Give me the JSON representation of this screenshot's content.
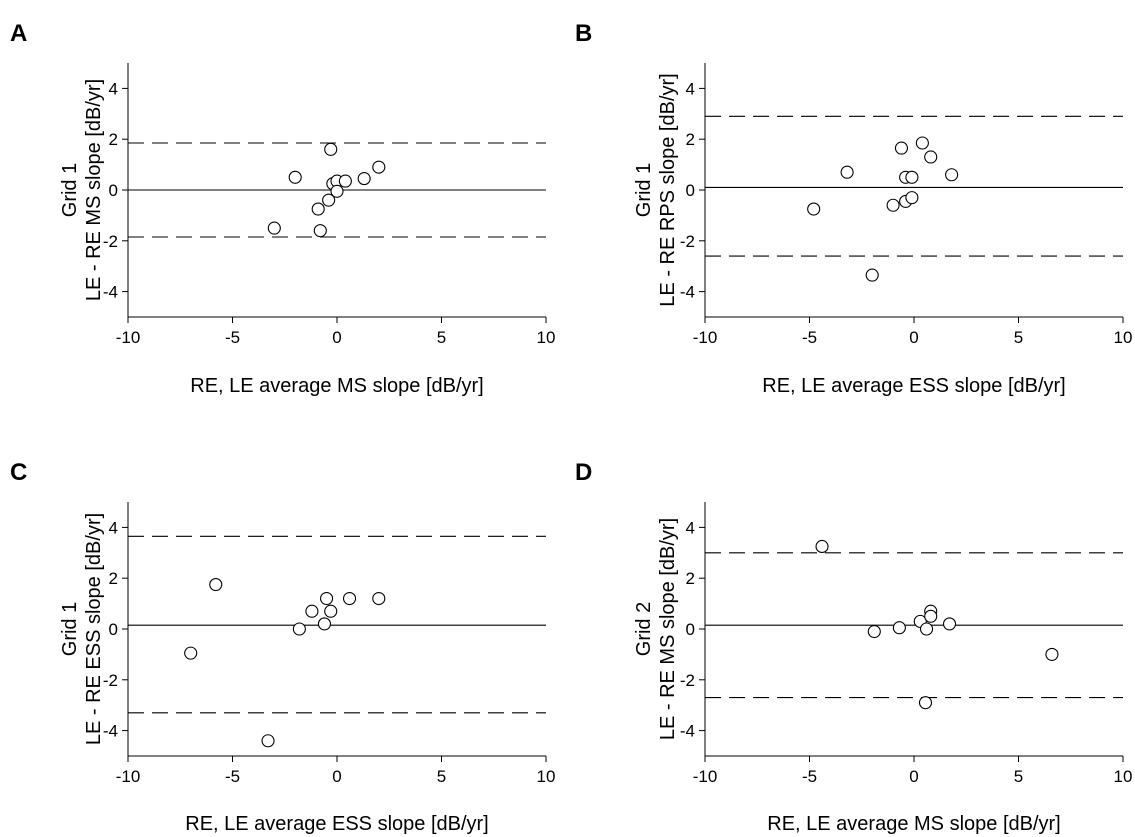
{
  "figure": {
    "panels": [
      {
        "letter": "A",
        "ylabel_line1": "Grid 1",
        "ylabel_line2": "LE - RE MS slope [dB/yr]",
        "xlabel": "RE, LE average MS slope [dB/yr]"
      },
      {
        "letter": "B",
        "ylabel_line1": "Grid 1",
        "ylabel_line2": "LE - RE RPS slope [dB/yr]",
        "xlabel": "RE, LE average ESS slope [dB/yr]"
      },
      {
        "letter": "C",
        "ylabel_line1": "Grid 1",
        "ylabel_line2": "LE - RE ESS slope [dB/yr]",
        "xlabel": "RE, LE average ESS slope [dB/yr]"
      },
      {
        "letter": "D",
        "ylabel_line1": "Grid 2",
        "ylabel_line2": "LE - RE MS slope [dB/yr]",
        "xlabel": "RE, LE average MS slope [dB/yr]"
      }
    ]
  },
  "chart_data": [
    {
      "type": "scatter",
      "panel": "A",
      "xlabel": "RE, LE average MS slope [dB/yr]",
      "ylabel": "Grid 1 LE - RE MS slope [dB/yr]",
      "xlim": [
        -10,
        10
      ],
      "ylim": [
        -5,
        5
      ],
      "xticks": [
        -10,
        -5,
        0,
        5,
        10
      ],
      "yticks": [
        -4,
        -2,
        0,
        2,
        4
      ],
      "grid": false,
      "mean_line": 0.0,
      "limits_of_agreement": [
        1.85,
        -1.85
      ],
      "points": [
        {
          "x": -3.0,
          "y": -1.5
        },
        {
          "x": -2.0,
          "y": 0.5
        },
        {
          "x": -0.9,
          "y": -0.75
        },
        {
          "x": -0.8,
          "y": -1.6
        },
        {
          "x": -0.4,
          "y": -0.4
        },
        {
          "x": -0.3,
          "y": 1.6
        },
        {
          "x": -0.2,
          "y": 0.25
        },
        {
          "x": 0.0,
          "y": 0.35
        },
        {
          "x": 0.0,
          "y": -0.05
        },
        {
          "x": 0.4,
          "y": 0.35
        },
        {
          "x": 1.3,
          "y": 0.45
        },
        {
          "x": 2.0,
          "y": 0.9
        }
      ]
    },
    {
      "type": "scatter",
      "panel": "B",
      "xlabel": "RE, LE average ESS slope [dB/yr]",
      "ylabel": "Grid 1 LE - RE RPS slope [dB/yr]",
      "xlim": [
        -10,
        10
      ],
      "ylim": [
        -5,
        5
      ],
      "xticks": [
        -10,
        -5,
        0,
        5,
        10
      ],
      "yticks": [
        -4,
        -2,
        0,
        2,
        4
      ],
      "grid": false,
      "mean_line": 0.1,
      "limits_of_agreement": [
        2.9,
        -2.6
      ],
      "points": [
        {
          "x": -4.8,
          "y": -0.75
        },
        {
          "x": -3.2,
          "y": 0.7
        },
        {
          "x": -2.0,
          "y": -3.35
        },
        {
          "x": -1.0,
          "y": -0.6
        },
        {
          "x": -0.6,
          "y": 1.65
        },
        {
          "x": -0.4,
          "y": 0.5
        },
        {
          "x": -0.4,
          "y": -0.45
        },
        {
          "x": -0.1,
          "y": -0.3
        },
        {
          "x": -0.1,
          "y": 0.5
        },
        {
          "x": 0.4,
          "y": 1.85
        },
        {
          "x": 0.8,
          "y": 1.3
        },
        {
          "x": 1.8,
          "y": 0.6
        }
      ]
    },
    {
      "type": "scatter",
      "panel": "C",
      "xlabel": "RE, LE average ESS slope [dB/yr]",
      "ylabel": "Grid 1 LE - RE ESS slope [dB/yr]",
      "xlim": [
        -10,
        10
      ],
      "ylim": [
        -5,
        5
      ],
      "xticks": [
        -10,
        -5,
        0,
        5,
        10
      ],
      "yticks": [
        -4,
        -2,
        0,
        2,
        4
      ],
      "grid": false,
      "mean_line": 0.15,
      "limits_of_agreement": [
        3.65,
        -3.3
      ],
      "points": [
        {
          "x": -7.0,
          "y": -0.95
        },
        {
          "x": -5.8,
          "y": 1.75
        },
        {
          "x": -3.3,
          "y": -4.4
        },
        {
          "x": -1.8,
          "y": 0.0
        },
        {
          "x": -1.2,
          "y": 0.7
        },
        {
          "x": -0.6,
          "y": 0.2
        },
        {
          "x": -0.5,
          "y": 1.2
        },
        {
          "x": -0.3,
          "y": 0.7
        },
        {
          "x": 0.6,
          "y": 1.2
        },
        {
          "x": 2.0,
          "y": 1.2
        }
      ]
    },
    {
      "type": "scatter",
      "panel": "D",
      "xlabel": "RE, LE average MS slope [dB/yr]",
      "ylabel": "Grid 2 LE - RE MS slope [dB/yr]",
      "xlim": [
        -10,
        10
      ],
      "ylim": [
        -5,
        5
      ],
      "xticks": [
        -10,
        -5,
        0,
        5,
        10
      ],
      "yticks": [
        -4,
        -2,
        0,
        2,
        4
      ],
      "grid": false,
      "mean_line": 0.15,
      "limits_of_agreement": [
        3.0,
        -2.7
      ],
      "points": [
        {
          "x": -4.4,
          "y": 3.25
        },
        {
          "x": -1.9,
          "y": -0.1
        },
        {
          "x": -0.7,
          "y": 0.05
        },
        {
          "x": 0.3,
          "y": 0.3
        },
        {
          "x": 0.55,
          "y": -2.9
        },
        {
          "x": 0.6,
          "y": 0.0
        },
        {
          "x": 0.8,
          "y": 0.7
        },
        {
          "x": 0.8,
          "y": 0.5
        },
        {
          "x": 1.7,
          "y": 0.2
        },
        {
          "x": 6.6,
          "y": -1.0
        }
      ]
    }
  ]
}
